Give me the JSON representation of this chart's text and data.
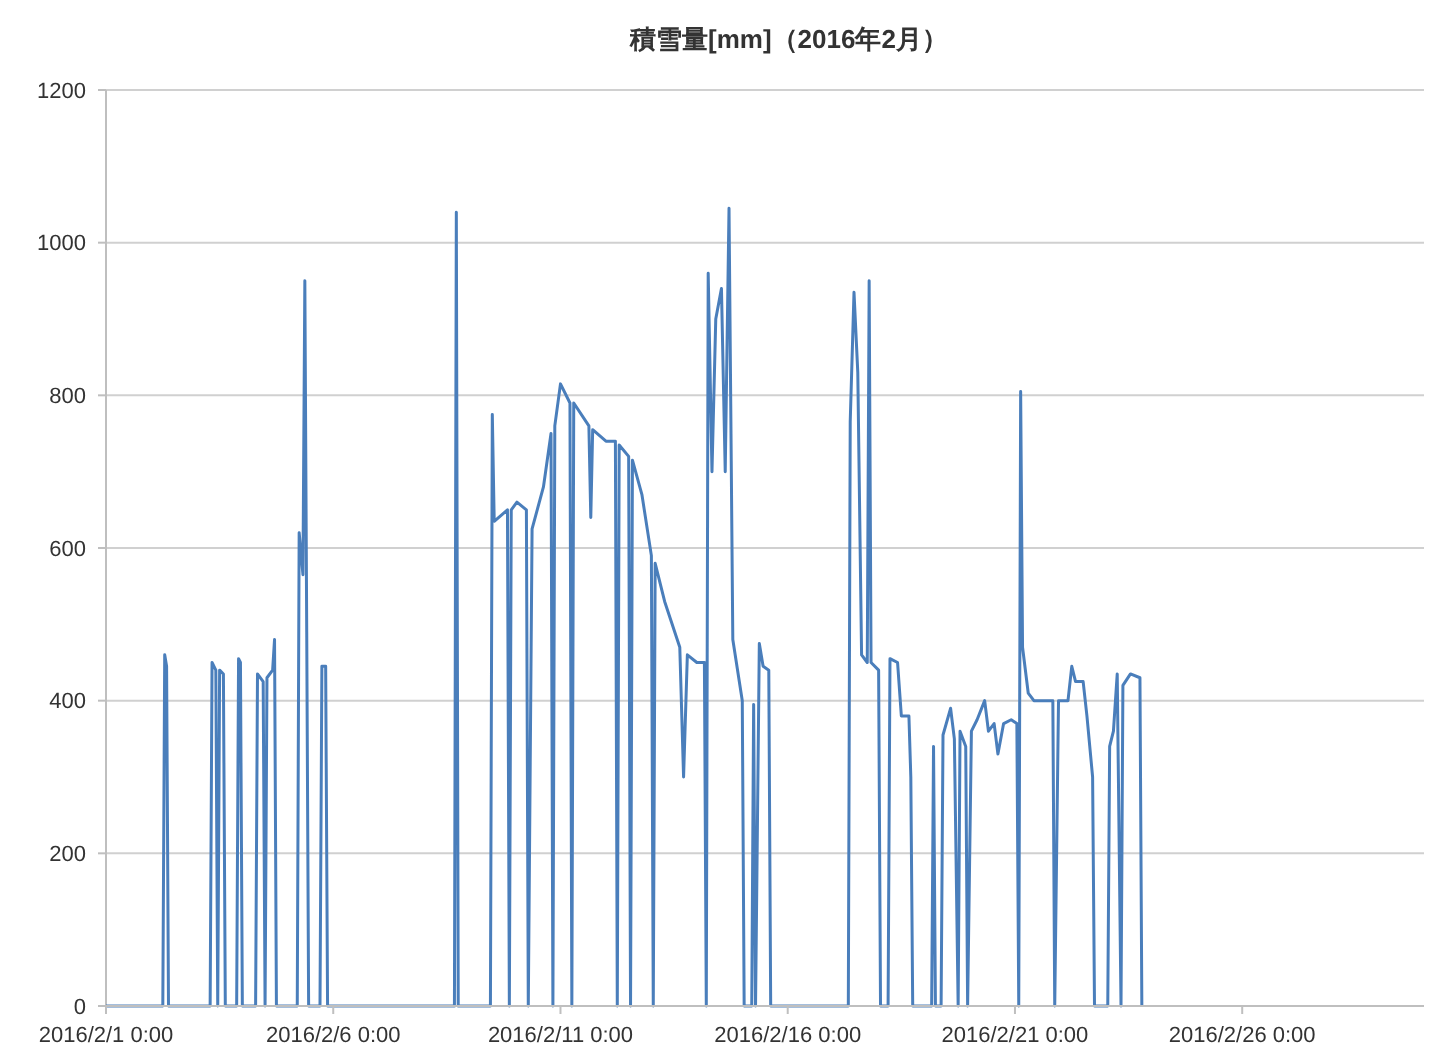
{
  "chart_data": {
    "type": "line",
    "title": "積雪量[mm]（2016年2月）",
    "x": [
      "2016-02-01T00:00",
      "2016-02-02T06:00",
      "2016-02-02T07:00",
      "2016-02-02T08:00",
      "2016-02-02T09:00",
      "2016-02-03T07:00",
      "2016-02-03T08:00",
      "2016-02-03T10:00",
      "2016-02-03T11:00",
      "2016-02-03T12:00",
      "2016-02-03T14:00",
      "2016-02-03T15:00",
      "2016-02-03T21:00",
      "2016-02-03T22:00",
      "2016-02-03T23:00",
      "2016-02-04T00:00",
      "2016-02-04T07:00",
      "2016-02-04T08:00",
      "2016-02-04T11:00",
      "2016-02-04T12:00",
      "2016-02-04T13:00",
      "2016-02-04T16:00",
      "2016-02-04T17:00",
      "2016-02-04T18:00",
      "2016-02-05T05:00",
      "2016-02-05T06:00",
      "2016-02-05T08:00",
      "2016-02-05T09:00",
      "2016-02-05T10:00",
      "2016-02-05T11:00",
      "2016-02-05T17:00",
      "2016-02-05T18:00",
      "2016-02-05T20:00",
      "2016-02-05T21:00",
      "2016-02-08T16:00",
      "2016-02-08T17:00",
      "2016-02-08T18:00",
      "2016-02-09T11:00",
      "2016-02-09T12:00",
      "2016-02-09T13:00",
      "2016-02-09T20:00",
      "2016-02-09T21:00",
      "2016-02-09T22:00",
      "2016-02-10T01:00",
      "2016-02-10T06:00",
      "2016-02-10T07:00",
      "2016-02-10T09:00",
      "2016-02-10T15:00",
      "2016-02-10T19:00",
      "2016-02-10T20:00",
      "2016-02-10T21:00",
      "2016-02-11T00:00",
      "2016-02-11T05:00",
      "2016-02-11T06:00",
      "2016-02-11T07:00",
      "2016-02-11T15:00",
      "2016-02-11T16:00",
      "2016-02-11T17:00",
      "2016-02-12T00:00",
      "2016-02-12T05:00",
      "2016-02-12T06:00",
      "2016-02-12T07:00",
      "2016-02-12T12:00",
      "2016-02-12T13:00",
      "2016-02-12T14:00",
      "2016-02-12T19:00",
      "2016-02-13T00:00",
      "2016-02-13T01:00",
      "2016-02-13T02:00",
      "2016-02-13T07:00",
      "2016-02-13T15:00",
      "2016-02-13T17:00",
      "2016-02-13T19:00",
      "2016-02-14T00:00",
      "2016-02-14T04:00",
      "2016-02-14T05:00",
      "2016-02-14T06:00",
      "2016-02-14T08:00",
      "2016-02-14T10:00",
      "2016-02-14T13:00",
      "2016-02-14T15:00",
      "2016-02-14T17:00",
      "2016-02-14T19:00",
      "2016-02-15T00:00",
      "2016-02-15T01:00",
      "2016-02-15T05:00",
      "2016-02-15T06:00",
      "2016-02-15T07:00",
      "2016-02-15T09:00",
      "2016-02-15T11:00",
      "2016-02-15T14:00",
      "2016-02-15T15:00",
      "2016-02-17T08:00",
      "2016-02-17T09:00",
      "2016-02-17T11:00",
      "2016-02-17T13:00",
      "2016-02-17T15:00",
      "2016-02-17T18:00",
      "2016-02-17T19:00",
      "2016-02-17T20:00",
      "2016-02-18T00:00",
      "2016-02-18T01:00",
      "2016-02-18T05:00",
      "2016-02-18T06:00",
      "2016-02-18T10:00",
      "2016-02-18T12:00",
      "2016-02-18T16:00",
      "2016-02-18T17:00",
      "2016-02-18T18:00",
      "2016-02-19T04:00",
      "2016-02-19T05:00",
      "2016-02-19T06:00",
      "2016-02-19T09:00",
      "2016-02-19T10:00",
      "2016-02-19T14:00",
      "2016-02-19T16:00",
      "2016-02-19T18:00",
      "2016-02-19T19:00",
      "2016-02-19T22:00",
      "2016-02-19T23:00",
      "2016-02-20T01:00",
      "2016-02-20T04:00",
      "2016-02-20T08:00",
      "2016-02-20T10:00",
      "2016-02-20T13:00",
      "2016-02-20T15:00",
      "2016-02-20T18:00",
      "2016-02-20T22:00",
      "2016-02-21T01:00",
      "2016-02-21T02:00",
      "2016-02-21T03:00",
      "2016-02-21T04:00",
      "2016-02-21T07:00",
      "2016-02-21T10:00",
      "2016-02-21T15:00",
      "2016-02-21T20:00",
      "2016-02-21T21:00",
      "2016-02-21T23:00",
      "2016-02-22T04:00",
      "2016-02-22T06:00",
      "2016-02-22T08:00",
      "2016-02-22T12:00",
      "2016-02-22T14:00",
      "2016-02-22T17:00",
      "2016-02-22T18:00",
      "2016-02-23T01:00",
      "2016-02-23T02:00",
      "2016-02-23T04:00",
      "2016-02-23T06:00",
      "2016-02-23T08:00",
      "2016-02-23T09:00",
      "2016-02-23T13:00",
      "2016-02-23T18:00",
      "2016-02-23T19:00"
    ],
    "series": [
      {
        "color": "#4a7ebb",
        "values": [
          0,
          0,
          460,
          445,
          0,
          0,
          450,
          440,
          0,
          440,
          435,
          0,
          0,
          455,
          450,
          0,
          0,
          435,
          425,
          0,
          430,
          440,
          480,
          0,
          0,
          620,
          565,
          950,
          490,
          0,
          0,
          445,
          445,
          0,
          0,
          1040,
          0,
          0,
          775,
          635,
          650,
          0,
          650,
          660,
          650,
          0,
          625,
          680,
          750,
          0,
          760,
          815,
          790,
          0,
          790,
          760,
          640,
          755,
          740,
          740,
          0,
          735,
          720,
          0,
          715,
          670,
          590,
          0,
          580,
          530,
          470,
          300,
          460,
          450,
          450,
          0,
          960,
          700,
          900,
          940,
          700,
          1045,
          480,
          400,
          0,
          0,
          395,
          0,
          475,
          445,
          440,
          0,
          0,
          765,
          935,
          830,
          460,
          450,
          950,
          450,
          440,
          0,
          0,
          455,
          450,
          380,
          380,
          300,
          0,
          0,
          340,
          0,
          0,
          355,
          390,
          350,
          0,
          360,
          340,
          0,
          360,
          375,
          400,
          360,
          370,
          330,
          370,
          375,
          370,
          0,
          805,
          470,
          410,
          400,
          400,
          400,
          0,
          400,
          400,
          445,
          425,
          425,
          380,
          300,
          0,
          0,
          340,
          360,
          435,
          0,
          420,
          435,
          430,
          0
        ]
      }
    ],
    "xlim": [
      "2016-02-01T00:00",
      "2016-03-01T00:00"
    ],
    "xticks": [
      {
        "value": "2016-02-01T00:00",
        "label": "2016/2/1 0:00"
      },
      {
        "value": "2016-02-06T00:00",
        "label": "2016/2/6 0:00"
      },
      {
        "value": "2016-02-11T00:00",
        "label": "2016/2/11 0:00"
      },
      {
        "value": "2016-02-16T00:00",
        "label": "2016/2/16 0:00"
      },
      {
        "value": "2016-02-21T00:00",
        "label": "2016/2/21 0:00"
      },
      {
        "value": "2016-02-26T00:00",
        "label": "2016/2/26 0:00"
      }
    ],
    "ylim": [
      0,
      1200
    ],
    "yticks": [
      0,
      200,
      400,
      600,
      800,
      1000,
      1200
    ],
    "grid": "y",
    "marker": "none",
    "line_style": "solid"
  }
}
